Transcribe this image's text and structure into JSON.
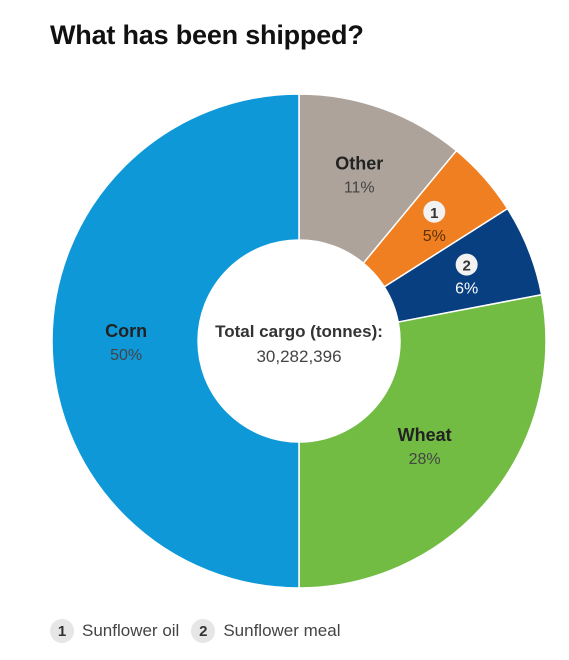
{
  "chart_data": {
    "type": "pie",
    "donut": true,
    "title": "What has been shipped?",
    "center_label": "Total cargo (tonnes):",
    "center_value": "30,282,396",
    "slices": [
      {
        "label": "Other",
        "value": 11,
        "display": "11%",
        "color": "#ada39b"
      },
      {
        "label": "1",
        "value": 5,
        "display": "5%",
        "color": "#f07f22"
      },
      {
        "label": "2",
        "value": 6,
        "display": "6%",
        "color": "#083f80"
      },
      {
        "label": "Wheat",
        "value": 28,
        "display": "28%",
        "color": "#72bc44"
      },
      {
        "label": "Corn",
        "value": 50,
        "display": "50%",
        "color": "#0e98d8"
      }
    ],
    "legend": [
      {
        "key": "1",
        "label": "Sunflower oil"
      },
      {
        "key": "2",
        "label": "Sunflower meal"
      }
    ]
  }
}
